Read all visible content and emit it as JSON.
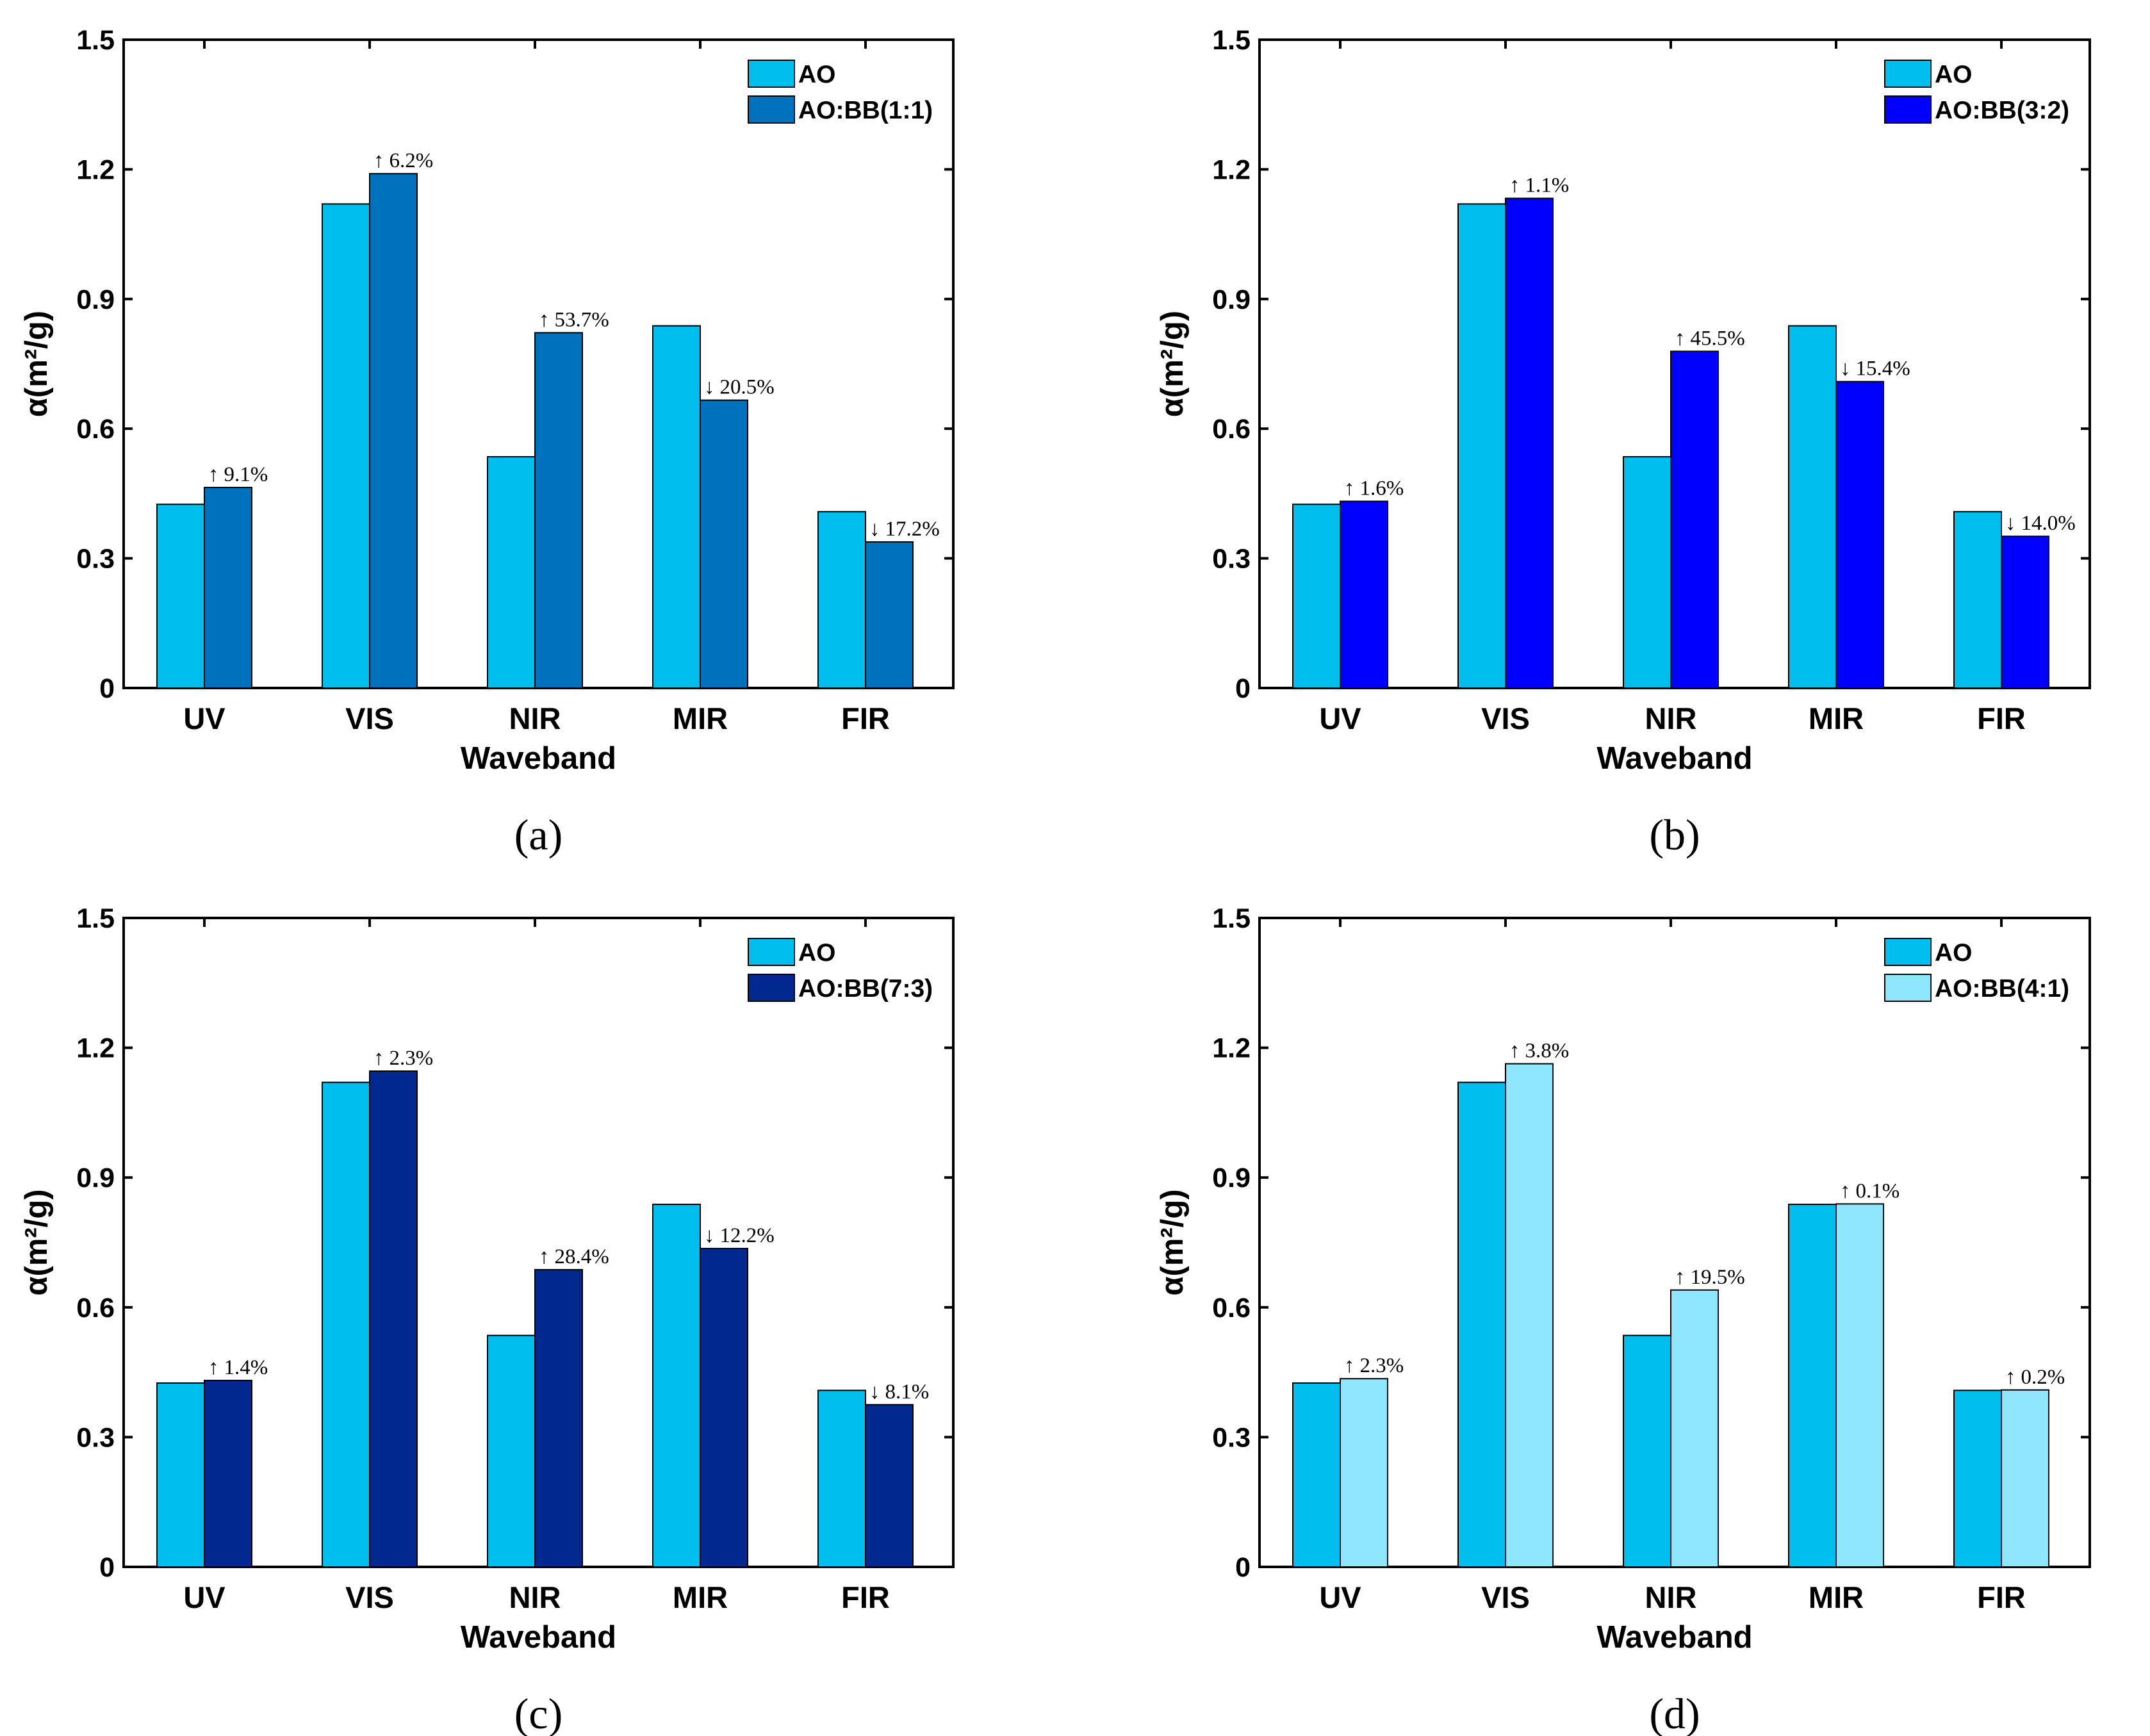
{
  "shared": {
    "categories": [
      "UV",
      "VIS",
      "NIR",
      "MIR",
      "FIR"
    ],
    "xlabel": "Waveband",
    "ylabel": "α(m²/g)",
    "yticks": [
      "0",
      "0.3",
      "0.6",
      "0.9",
      "1.2",
      "1.5"
    ],
    "ylim": [
      0,
      1.5
    ]
  },
  "chart_data": [
    {
      "type": "bar",
      "panel_label": "(a)",
      "categories": [
        "UV",
        "VIS",
        "NIR",
        "MIR",
        "FIR"
      ],
      "xlabel": "Waveband",
      "ylabel": "α(m²/g)",
      "ylim": [
        0,
        1.5
      ],
      "legend_position": "top-right",
      "series": [
        {
          "name": "AO",
          "color": "#00BFEE",
          "values": [
            0.425,
            1.12,
            0.535,
            0.838,
            0.408
          ]
        },
        {
          "name": "AO:BB(1:1)",
          "color": "#0072BD",
          "values": [
            0.464,
            1.19,
            0.822,
            0.666,
            0.338
          ]
        }
      ],
      "annotations": [
        {
          "arrow": "↑",
          "text": "9.1%"
        },
        {
          "arrow": "↑",
          "text": "6.2%"
        },
        {
          "arrow": "↑",
          "text": "53.7%"
        },
        {
          "arrow": "↓",
          "text": "20.5%"
        },
        {
          "arrow": "↓",
          "text": "17.2%"
        }
      ]
    },
    {
      "type": "bar",
      "panel_label": "(b)",
      "categories": [
        "UV",
        "VIS",
        "NIR",
        "MIR",
        "FIR"
      ],
      "xlabel": "Waveband",
      "ylabel": "α(m²/g)",
      "ylim": [
        0,
        1.5
      ],
      "legend_position": "top-right",
      "series": [
        {
          "name": "AO",
          "color": "#00BFEE",
          "values": [
            0.425,
            1.12,
            0.535,
            0.838,
            0.408
          ]
        },
        {
          "name": "AO:BB(3:2)",
          "color": "#0000FF",
          "values": [
            0.432,
            1.133,
            0.779,
            0.709,
            0.351
          ]
        }
      ],
      "annotations": [
        {
          "arrow": "↑",
          "text": "1.6%"
        },
        {
          "arrow": "↑",
          "text": "1.1%"
        },
        {
          "arrow": "↑",
          "text": "45.5%"
        },
        {
          "arrow": "↓",
          "text": "15.4%"
        },
        {
          "arrow": "↓",
          "text": "14.0%"
        }
      ]
    },
    {
      "type": "bar",
      "panel_label": "(c)",
      "categories": [
        "UV",
        "VIS",
        "NIR",
        "MIR",
        "FIR"
      ],
      "xlabel": "Waveband",
      "ylabel": "α(m²/g)",
      "ylim": [
        0,
        1.5
      ],
      "legend_position": "top-right",
      "series": [
        {
          "name": "AO",
          "color": "#00BFEE",
          "values": [
            0.425,
            1.12,
            0.535,
            0.838,
            0.408
          ]
        },
        {
          "name": "AO:BB(7:3)",
          "color": "#00288E",
          "values": [
            0.431,
            1.146,
            0.687,
            0.736,
            0.375
          ]
        }
      ],
      "annotations": [
        {
          "arrow": "↑",
          "text": "1.4%"
        },
        {
          "arrow": "↑",
          "text": "2.3%"
        },
        {
          "arrow": "↑",
          "text": "28.4%"
        },
        {
          "arrow": "↓",
          "text": "12.2%"
        },
        {
          "arrow": "↓",
          "text": "8.1%"
        }
      ]
    },
    {
      "type": "bar",
      "panel_label": "(d)",
      "categories": [
        "UV",
        "VIS",
        "NIR",
        "MIR",
        "FIR"
      ],
      "xlabel": "Waveband",
      "ylabel": "α(m²/g)",
      "ylim": [
        0,
        1.5
      ],
      "legend_position": "top-right",
      "series": [
        {
          "name": "AO",
          "color": "#00BFEE",
          "values": [
            0.425,
            1.12,
            0.535,
            0.838,
            0.408
          ]
        },
        {
          "name": "AO:BB(4:1)",
          "color": "#8FE6FF",
          "values": [
            0.435,
            1.163,
            0.64,
            0.839,
            0.409
          ]
        }
      ],
      "annotations": [
        {
          "arrow": "↑",
          "text": "2.3%"
        },
        {
          "arrow": "↑",
          "text": "3.8%"
        },
        {
          "arrow": "↑",
          "text": "19.5%"
        },
        {
          "arrow": "↑",
          "text": "0.1%"
        },
        {
          "arrow": "↑",
          "text": "0.2%"
        }
      ]
    }
  ]
}
